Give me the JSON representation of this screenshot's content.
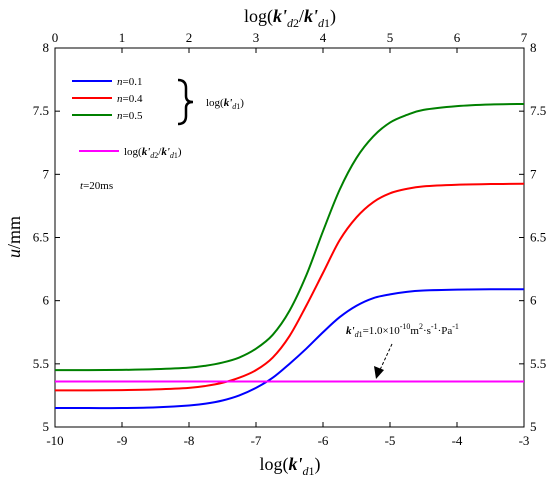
{
  "chart_data": {
    "type": "line",
    "title": "",
    "xlabel": "log(k'd1)",
    "ylabel": "u/mm",
    "x2label": "log(k'd2/k'd1)",
    "xlim": [
      -10,
      -3
    ],
    "ylim": [
      5,
      8
    ],
    "x2lim": [
      0,
      7
    ],
    "xticks": [
      "-10",
      "-9",
      "-8",
      "-7",
      "-6",
      "-5",
      "-4",
      "-3"
    ],
    "x2ticks": [
      "0",
      "1",
      "2",
      "3",
      "4",
      "5",
      "6",
      "7"
    ],
    "yticks": [
      "5",
      "5.5",
      "6",
      "6.5",
      "7",
      "7.5",
      "8"
    ],
    "y2ticks": [
      "5",
      "5.5",
      "6",
      "6.5",
      "7",
      "7.5",
      "8"
    ],
    "grid": false,
    "legend_position": "top-left",
    "series": [
      {
        "name": "n=0.1",
        "color": "#0000ff",
        "x": [
          -10,
          -9.5,
          -9,
          -8.5,
          -8,
          -7.75,
          -7.5,
          -7.25,
          -7,
          -6.75,
          -6.5,
          -6.25,
          -6,
          -5.75,
          -5.5,
          -5.25,
          -5,
          -4.75,
          -4.5,
          -4,
          -3.5,
          -3
        ],
        "y": [
          5.15,
          5.15,
          5.15,
          5.155,
          5.17,
          5.185,
          5.21,
          5.25,
          5.31,
          5.39,
          5.5,
          5.62,
          5.75,
          5.87,
          5.96,
          6.02,
          6.05,
          6.07,
          6.08,
          6.087,
          6.09,
          6.09
        ]
      },
      {
        "name": "n=0.4",
        "color": "#ff0000",
        "x": [
          -10,
          -9.5,
          -9,
          -8.5,
          -8,
          -7.75,
          -7.5,
          -7.25,
          -7,
          -6.75,
          -6.5,
          -6.25,
          -6,
          -5.75,
          -5.5,
          -5.25,
          -5,
          -4.75,
          -4.5,
          -4,
          -3.5,
          -3
        ],
        "y": [
          5.29,
          5.29,
          5.292,
          5.298,
          5.31,
          5.325,
          5.35,
          5.39,
          5.45,
          5.55,
          5.72,
          5.96,
          6.22,
          6.48,
          6.66,
          6.78,
          6.85,
          6.885,
          6.905,
          6.918,
          6.923,
          6.925
        ]
      },
      {
        "name": "n=0.5",
        "color": "#008000",
        "x": [
          -10,
          -9.5,
          -9,
          -8.5,
          -8,
          -7.75,
          -7.5,
          -7.25,
          -7,
          -6.75,
          -6.5,
          -6.25,
          -6,
          -5.75,
          -5.5,
          -5.25,
          -5,
          -4.75,
          -4.5,
          -4,
          -3.5,
          -3
        ],
        "y": [
          5.45,
          5.45,
          5.452,
          5.458,
          5.47,
          5.485,
          5.51,
          5.55,
          5.62,
          5.73,
          5.92,
          6.2,
          6.55,
          6.88,
          7.13,
          7.3,
          7.41,
          7.47,
          7.51,
          7.54,
          7.553,
          7.557
        ]
      },
      {
        "name": "log(k'd2/k'd1)",
        "color": "#ff00ff",
        "x": [
          -10,
          -3
        ],
        "y": [
          5.36,
          5.36
        ]
      }
    ],
    "legend": {
      "entries": [
        "n=0.1",
        "n=0.4",
        "n=0.5"
      ],
      "brace_label": "log(k'd1)",
      "extra_entry": "log(k'd2/k'd1)",
      "note": "t=20ms"
    },
    "annotations": [
      {
        "text": "k'd1=1.0×10-10m2·s-1·Pa-1",
        "points_to": {
          "x": -5.2,
          "y": 5.38
        }
      }
    ]
  }
}
